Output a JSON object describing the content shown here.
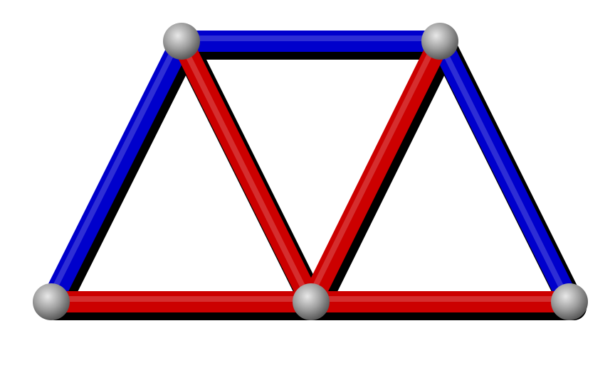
{
  "diagram": {
    "type": "truss",
    "nodes": [
      {
        "id": "bottom-left"
      },
      {
        "id": "top-left"
      },
      {
        "id": "top-right"
      },
      {
        "id": "bottom-middle"
      },
      {
        "id": "bottom-right"
      }
    ],
    "members": [
      {
        "from": "top-left",
        "to": "top-right",
        "state": "compression"
      },
      {
        "from": "bottom-left",
        "to": "top-left",
        "state": "compression"
      },
      {
        "from": "top-right",
        "to": "bottom-right",
        "state": "compression"
      },
      {
        "from": "top-left",
        "to": "bottom-middle",
        "state": "tension"
      },
      {
        "from": "bottom-middle",
        "to": "top-right",
        "state": "tension"
      },
      {
        "from": "bottom-left",
        "to": "bottom-middle",
        "state": "tension"
      },
      {
        "from": "bottom-middle",
        "to": "bottom-right",
        "state": "tension"
      }
    ],
    "colors": {
      "compression": "#0000cc",
      "tension": "#cc0000",
      "joint": "#9a9a9a",
      "shadow": "#000000"
    }
  }
}
